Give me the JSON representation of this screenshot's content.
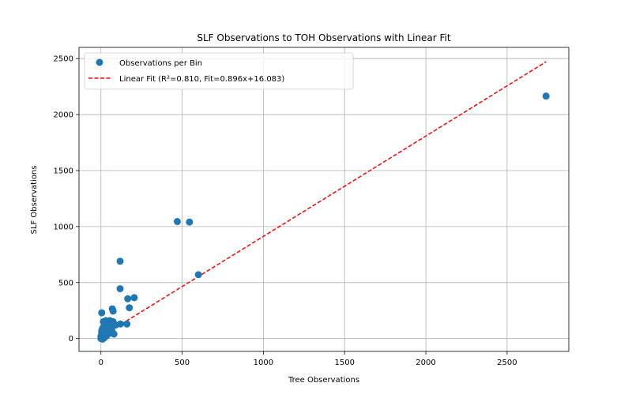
{
  "chart_data": {
    "type": "scatter",
    "title": "SLF Observations to TOH Observations with Linear Fit",
    "xlabel": "Tree Observations",
    "ylabel": "SLF Observations",
    "xlim": [
      -135,
      2880
    ],
    "ylim": [
      -115,
      2600
    ],
    "xticks": [
      0,
      500,
      1000,
      1500,
      2000,
      2500
    ],
    "yticks": [
      0,
      500,
      1000,
      1500,
      2000,
      2500
    ],
    "grid": true,
    "legend_position": "top-left",
    "series": [
      {
        "name": "Observations per Bin",
        "kind": "scatter",
        "color": "#1f77b4",
        "points": [
          [
            2740,
            2165
          ],
          [
            470,
            1045
          ],
          [
            545,
            1040
          ],
          [
            118,
            690
          ],
          [
            600,
            570
          ],
          [
            118,
            445
          ],
          [
            205,
            365
          ],
          [
            165,
            355
          ],
          [
            70,
            265
          ],
          [
            175,
            275
          ],
          [
            5,
            230
          ],
          [
            75,
            245
          ],
          [
            160,
            130
          ],
          [
            120,
            130
          ],
          [
            55,
            160
          ],
          [
            75,
            150
          ],
          [
            30,
            160
          ],
          [
            15,
            150
          ],
          [
            45,
            140
          ],
          [
            90,
            120
          ],
          [
            20,
            110
          ],
          [
            35,
            100
          ],
          [
            60,
            95
          ],
          [
            10,
            90
          ],
          [
            40,
            75
          ],
          [
            70,
            60
          ],
          [
            25,
            55
          ],
          [
            5,
            50
          ],
          [
            50,
            45
          ],
          [
            15,
            35
          ],
          [
            35,
            25
          ],
          [
            0,
            20
          ],
          [
            8,
            12
          ],
          [
            20,
            5
          ],
          [
            0,
            0
          ],
          [
            10,
            -5
          ],
          [
            45,
            115
          ],
          [
            25,
            130
          ],
          [
            65,
            85
          ],
          [
            80,
            40
          ],
          [
            5,
            70
          ],
          [
            30,
            65
          ],
          [
            15,
            15
          ],
          [
            55,
            110
          ],
          [
            40,
            40
          ]
        ]
      },
      {
        "name": "Linear Fit (R²=0.810, Fit=0.896x+16.083)",
        "kind": "line",
        "color": "#ff0000",
        "slope": 0.896,
        "intercept": 16.083,
        "x_range": [
          0,
          2740
        ]
      }
    ]
  }
}
